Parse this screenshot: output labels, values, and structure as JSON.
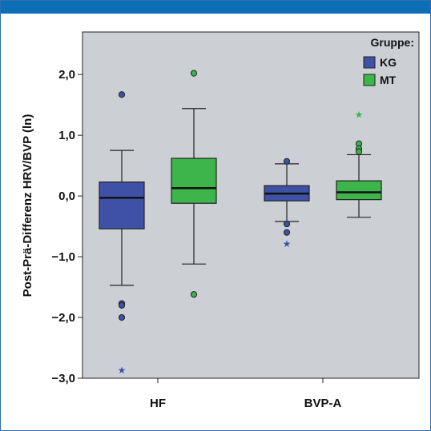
{
  "chart_data": {
    "type": "boxplot",
    "ylabel": "Post-Prä-Differenz HRV/BVP (ln)",
    "ylim": [
      -3.0,
      2.7
    ],
    "yticks": [
      2.0,
      1.0,
      0.0,
      -1.0,
      -2.0,
      -3.0
    ],
    "ytick_labels": [
      "2,0",
      "1,0",
      "0,0",
      "−1,0",
      "−2,0",
      "−3,0"
    ],
    "categories": [
      "HF",
      "BVP-A"
    ],
    "legend": {
      "title": "Gruppe:",
      "placement": "top-right"
    },
    "grid": false,
    "series": [
      {
        "name": "KG",
        "color": "#3f51a6",
        "boxes": [
          {
            "category": "HF",
            "whisker_low": -1.47,
            "q1": -0.54,
            "median": -0.03,
            "q3": 0.23,
            "whisker_high": 0.75,
            "outliers": [
              1.67,
              -1.77,
              -1.8,
              -2.0
            ],
            "extremes": [
              -2.87
            ]
          },
          {
            "category": "BVP-A",
            "whisker_low": -0.42,
            "q1": -0.08,
            "median": 0.04,
            "q3": 0.17,
            "whisker_high": 0.53,
            "outliers": [
              0.57,
              -0.46,
              -0.6
            ],
            "extremes": [
              -0.79
            ]
          }
        ]
      },
      {
        "name": "MT",
        "color": "#3db54a",
        "boxes": [
          {
            "category": "HF",
            "whisker_low": -1.12,
            "q1": -0.12,
            "median": 0.13,
            "q3": 0.62,
            "whisker_high": 1.44,
            "outliers": [
              2.02,
              -1.62
            ],
            "extremes": []
          },
          {
            "category": "BVP-A",
            "whisker_low": -0.35,
            "q1": -0.06,
            "median": 0.06,
            "q3": 0.25,
            "whisker_high": 0.68,
            "outliers": [
              0.86,
              0.78,
              0.73
            ],
            "extremes": [
              1.34
            ]
          }
        ]
      }
    ]
  }
}
